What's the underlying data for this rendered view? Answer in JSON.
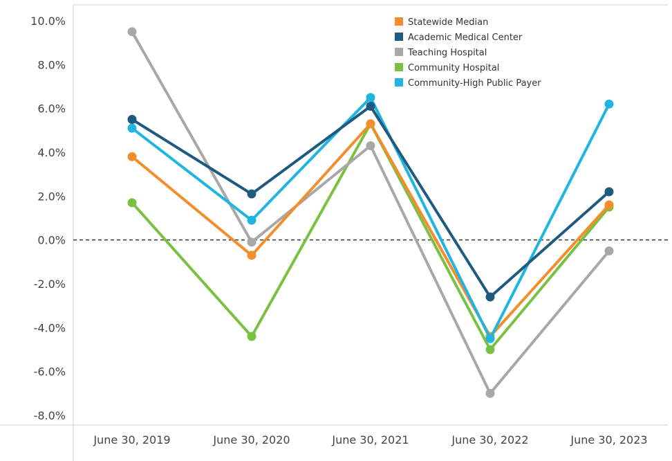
{
  "chart_data": {
    "type": "line",
    "title": "",
    "xlabel": "",
    "ylabel": "",
    "categories": [
      "June 30, 2019",
      "June 30, 2020",
      "June 30, 2021",
      "June 30, 2022",
      "June 30, 2023"
    ],
    "y_ticks": [
      "10.0%",
      "8.0%",
      "6.0%",
      "4.0%",
      "2.0%",
      "0.0%",
      "-2.0%",
      "-4.0%",
      "-6.0%",
      "-8.0%"
    ],
    "ylim": [
      -8.0,
      10.0
    ],
    "y_unit": "%",
    "reference_line": {
      "value": 0.0,
      "style": "dashed"
    },
    "grid": false,
    "legend_position": "top-right",
    "series": [
      {
        "name": "Statewide Median",
        "color": "#F28E2B",
        "values": [
          3.8,
          -0.7,
          5.3,
          -4.4,
          1.6
        ]
      },
      {
        "name": "Academic Medical Center",
        "color": "#1F5A80",
        "values": [
          5.5,
          2.1,
          6.1,
          -2.6,
          2.2
        ]
      },
      {
        "name": "Teaching Hospital",
        "color": "#A8A8A8",
        "values": [
          9.5,
          -0.1,
          4.3,
          -7.0,
          -0.5
        ]
      },
      {
        "name": "Community Hospital",
        "color": "#7AC143",
        "values": [
          1.7,
          -4.4,
          5.3,
          -5.0,
          1.5
        ]
      },
      {
        "name": "Community-High Public Payer",
        "color": "#1FB5E0",
        "values": [
          5.1,
          0.9,
          6.5,
          -4.5,
          6.2
        ]
      }
    ]
  }
}
